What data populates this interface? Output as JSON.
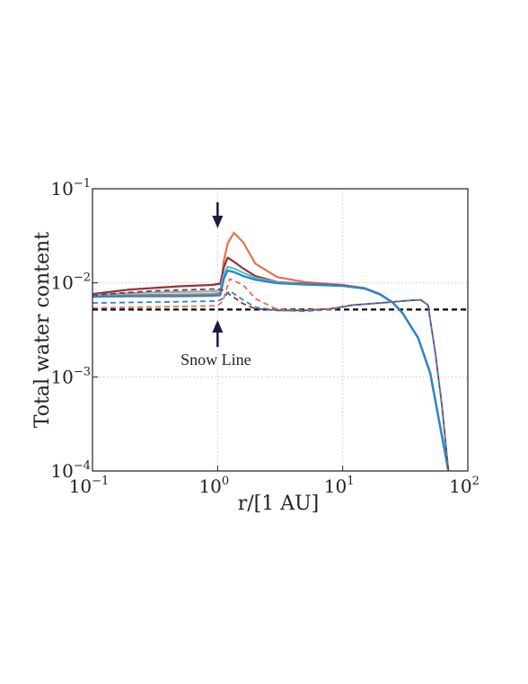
{
  "chart_data": {
    "type": "line",
    "xlabel": "r/[1 AU]",
    "ylabel": "Total water content",
    "xscale": "log",
    "yscale": "log",
    "xlim": [
      0.1,
      100
    ],
    "ylim": [
      0.0001,
      0.1
    ],
    "grid": true,
    "x_ticks": [
      {
        "base": "10",
        "exp": "−1",
        "value": 0.1
      },
      {
        "base": "10",
        "exp": "0",
        "value": 1
      },
      {
        "base": "10",
        "exp": "1",
        "value": 10
      },
      {
        "base": "10",
        "exp": "2",
        "value": 100
      }
    ],
    "y_ticks": [
      {
        "base": "10",
        "exp": "−4",
        "value": 0.0001
      },
      {
        "base": "10",
        "exp": "−3",
        "value": 0.001
      },
      {
        "base": "10",
        "exp": "−2",
        "value": 0.01
      },
      {
        "base": "10",
        "exp": "−1",
        "value": 0.1
      }
    ],
    "annotation": {
      "text": "Snow Line",
      "x": 1
    },
    "reference_line": {
      "y": 0.0052,
      "color": "#000000",
      "style": "dashed"
    },
    "series": [
      {
        "color": "#e8704a",
        "style": "solid",
        "width": 2.2,
        "x": [
          0.1,
          0.2,
          0.5,
          0.9,
          1.05,
          1.12,
          1.2,
          1.35,
          1.6,
          2,
          3,
          5,
          10,
          15,
          20,
          25,
          30,
          40,
          50,
          60,
          70
        ],
        "y": [
          0.0071,
          0.0074,
          0.0075,
          0.0076,
          0.0078,
          0.017,
          0.026,
          0.034,
          0.027,
          0.016,
          0.0115,
          0.0102,
          0.0095,
          0.0088,
          0.0076,
          0.0062,
          0.0048,
          0.0026,
          0.0011,
          0.0003,
          0.0001
        ]
      },
      {
        "color": "#9b2f3a",
        "style": "solid",
        "width": 2.2,
        "x": [
          0.1,
          0.2,
          0.5,
          0.9,
          1.05,
          1.12,
          1.2,
          1.35,
          1.6,
          2,
          3,
          5,
          10,
          15,
          20,
          25,
          30,
          40,
          50,
          60,
          70
        ],
        "y": [
          0.0076,
          0.0085,
          0.0092,
          0.0095,
          0.0098,
          0.0145,
          0.0185,
          0.0168,
          0.0142,
          0.0118,
          0.0102,
          0.0098,
          0.0094,
          0.0087,
          0.0075,
          0.0062,
          0.0048,
          0.0026,
          0.0011,
          0.0003,
          0.0001
        ]
      },
      {
        "color": "#5fc0c8",
        "style": "solid",
        "width": 2.2,
        "x": [
          0.1,
          0.2,
          0.5,
          0.9,
          1.05,
          1.12,
          1.2,
          1.35,
          1.6,
          2,
          3,
          5,
          10,
          15,
          20,
          25,
          30,
          40,
          50,
          60,
          70
        ],
        "y": [
          0.0074,
          0.0078,
          0.008,
          0.0081,
          0.0083,
          0.0122,
          0.0148,
          0.0142,
          0.0128,
          0.0113,
          0.0101,
          0.0097,
          0.0093,
          0.0087,
          0.0075,
          0.0062,
          0.0048,
          0.0026,
          0.0011,
          0.0003,
          0.0001
        ]
      },
      {
        "color": "#2f86c6",
        "style": "solid",
        "width": 2.4,
        "x": [
          0.1,
          0.2,
          0.5,
          0.9,
          1.05,
          1.12,
          1.2,
          1.35,
          1.6,
          2,
          3,
          5,
          10,
          15,
          20,
          25,
          30,
          40,
          50,
          60,
          70
        ],
        "y": [
          0.0071,
          0.0072,
          0.0072,
          0.0073,
          0.0074,
          0.011,
          0.0135,
          0.013,
          0.0118,
          0.0108,
          0.0099,
          0.0096,
          0.0093,
          0.0087,
          0.0075,
          0.0062,
          0.0048,
          0.0026,
          0.0011,
          0.0003,
          0.0001
        ]
      },
      {
        "color": "#e8704a",
        "style": "dashed",
        "width": 1.8,
        "x": [
          0.1,
          0.5,
          1.0,
          1.1,
          1.25,
          1.6,
          2,
          3,
          5,
          8,
          12,
          20,
          35,
          42,
          48,
          55,
          62,
          70
        ],
        "y": [
          0.0054,
          0.0056,
          0.0057,
          0.0064,
          0.011,
          0.0095,
          0.0068,
          0.0052,
          0.0051,
          0.0053,
          0.0058,
          0.0061,
          0.0065,
          0.0066,
          0.0058,
          0.0018,
          0.0005,
          0.0001
        ]
      },
      {
        "color": "#9b2f3a",
        "style": "dashed",
        "width": 1.8,
        "x": [
          0.1,
          0.3,
          0.7,
          1.0,
          1.1,
          1.25,
          1.6,
          2,
          3,
          5,
          8,
          12,
          20,
          35,
          42,
          48,
          55,
          62,
          70
        ],
        "y": [
          0.0074,
          0.0082,
          0.0085,
          0.0086,
          0.0084,
          0.0075,
          0.006,
          0.0053,
          0.0051,
          0.0051,
          0.0053,
          0.0058,
          0.0061,
          0.0065,
          0.0066,
          0.0058,
          0.0018,
          0.0005,
          0.0001
        ]
      },
      {
        "color": "#2f86c6",
        "style": "dashed",
        "width": 1.8,
        "x": [
          0.1,
          0.5,
          1.0,
          1.1,
          1.25,
          1.6,
          2,
          3,
          5,
          8,
          12,
          20,
          35,
          42,
          48,
          55,
          62,
          70
        ],
        "y": [
          0.0061,
          0.0063,
          0.0064,
          0.0068,
          0.0082,
          0.0066,
          0.0055,
          0.0051,
          0.005,
          0.0052,
          0.0058,
          0.0061,
          0.0065,
          0.0066,
          0.0058,
          0.0018,
          0.0005,
          0.0001
        ]
      }
    ]
  }
}
